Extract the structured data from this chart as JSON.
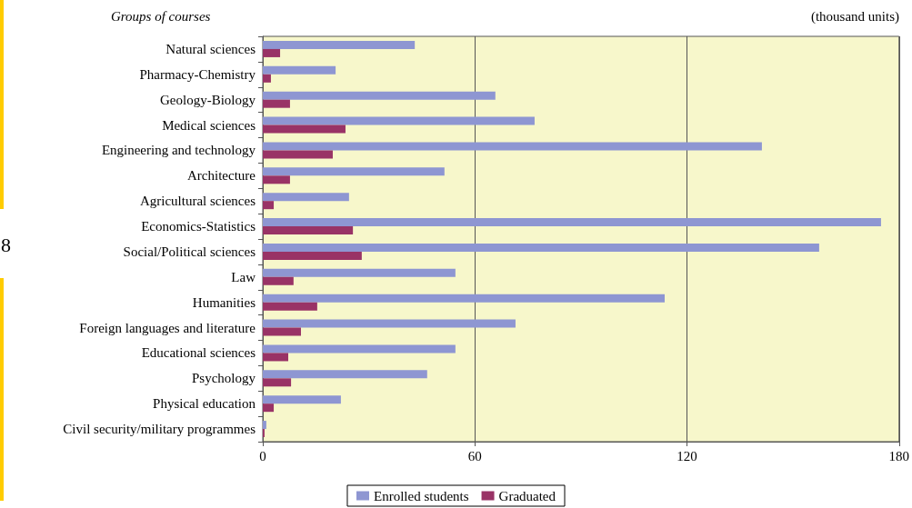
{
  "chart_data": {
    "type": "bar",
    "orientation": "horizontal",
    "ylabel": "Groups of courses",
    "annotations": [
      "(thousand units)",
      "8"
    ],
    "categories": [
      "Natural sciences",
      "Pharmacy-Chemistry",
      "Geology-Biology",
      "Medical sciences",
      "Engineering and technology",
      "Architecture",
      "Agricultural sciences",
      "Economics-Statistics",
      "Social/Political sciences",
      "Law",
      "Humanities",
      "Foreign languages and literature",
      "Educational sciences",
      "Psychology",
      "Physical education",
      "Civil security/military programmes"
    ],
    "series": [
      {
        "name": "Enrolled students",
        "color": "#8e96d2",
        "values": [
          43,
          20.6,
          65.8,
          76.9,
          141.2,
          51.4,
          24.4,
          174.9,
          157.4,
          54.5,
          113.7,
          71.5,
          54.5,
          46.5,
          22.1,
          1.0
        ]
      },
      {
        "name": "Graduated",
        "color": "#993366",
        "values": [
          4.9,
          2.3,
          7.7,
          23.4,
          19.8,
          7.7,
          3.1,
          25.5,
          28.0,
          8.7,
          15.4,
          10.8,
          7.2,
          8.0,
          3.1,
          0.5
        ]
      }
    ],
    "xlim": [
      0,
      180
    ],
    "xticks": [
      0,
      60,
      120,
      180
    ],
    "grid": "x",
    "legend": "bottom"
  }
}
